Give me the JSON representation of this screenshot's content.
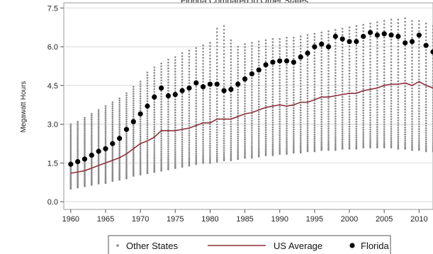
{
  "chart_data": {
    "type": "scatter",
    "title": "Florida Compared to Other States",
    "xlabel": "",
    "ylabel": "Megawatt Hours",
    "xlim": [
      1959,
      2012
    ],
    "ylim": [
      -0.3,
      7.7
    ],
    "x_ticks": [
      1960,
      1965,
      1970,
      1975,
      1980,
      1985,
      1990,
      1995,
      2000,
      2005,
      2010
    ],
    "y_ticks": [
      0.0,
      1.5,
      3.0,
      4.5,
      6.0,
      7.5
    ],
    "y_tick_labels": [
      "0.0",
      "1.5",
      "3.0",
      "4.5",
      "6.0",
      "7.5"
    ],
    "grid": "horizontal",
    "legend_position": "bottom",
    "colors": {
      "other_states": "#8a8a8a",
      "us_average": "#8e2f3a",
      "florida": "#000000",
      "plot_background": "#ffffff",
      "gridline": "#d9d9d9"
    },
    "series": [
      {
        "name": "Other States",
        "style": "small gray dots",
        "x": [
          1960,
          1961,
          1962,
          1963,
          1964,
          1965,
          1966,
          1967,
          1968,
          1969,
          1970,
          1971,
          1972,
          1973,
          1974,
          1975,
          1976,
          1977,
          1978,
          1979,
          1980,
          1981,
          1982,
          1983,
          1984,
          1985,
          1986,
          1987,
          1988,
          1989,
          1990,
          1991,
          1992,
          1993,
          1994,
          1995,
          1996,
          1997,
          1998,
          1999,
          2000,
          2001,
          2002,
          2003,
          2004,
          2005,
          2006,
          2007,
          2008,
          2009,
          2010,
          2011,
          2012
        ],
        "min": [
          0.5,
          0.55,
          0.6,
          0.65,
          0.7,
          0.72,
          0.8,
          0.85,
          0.9,
          1.0,
          1.05,
          1.1,
          1.15,
          1.2,
          1.25,
          1.3,
          1.35,
          1.4,
          1.45,
          1.5,
          1.5,
          1.55,
          1.6,
          1.6,
          1.65,
          1.7,
          1.7,
          1.75,
          1.8,
          1.8,
          1.85,
          1.85,
          1.9,
          1.9,
          1.95,
          1.95,
          2.0,
          2.0,
          2.0,
          2.05,
          2.05,
          2.05,
          2.1,
          2.1,
          2.1,
          2.1,
          2.1,
          2.05,
          2.05,
          2.0,
          2.0,
          1.95,
          1.95
        ],
        "max": [
          3.0,
          3.1,
          3.25,
          3.4,
          3.55,
          3.7,
          3.85,
          4.0,
          4.2,
          4.45,
          4.65,
          5.0,
          5.2,
          5.35,
          5.5,
          5.6,
          5.75,
          5.85,
          5.95,
          6.05,
          6.15,
          6.7,
          6.8,
          6.25,
          6.0,
          6.1,
          6.15,
          6.2,
          6.25,
          6.3,
          6.3,
          6.35,
          6.35,
          6.4,
          6.45,
          6.5,
          6.55,
          6.6,
          6.65,
          6.7,
          6.75,
          6.8,
          6.85,
          6.9,
          6.95,
          7.0,
          7.05,
          7.05,
          7.1,
          7.0,
          7.0,
          6.9,
          6.8
        ]
      },
      {
        "name": "US Average",
        "style": "line",
        "x": [
          1960,
          1961,
          1962,
          1963,
          1964,
          1965,
          1966,
          1967,
          1968,
          1969,
          1970,
          1971,
          1972,
          1973,
          1974,
          1975,
          1976,
          1977,
          1978,
          1979,
          1980,
          1981,
          1982,
          1983,
          1984,
          1985,
          1986,
          1987,
          1988,
          1989,
          1990,
          1991,
          1992,
          1993,
          1994,
          1995,
          1996,
          1997,
          1998,
          1999,
          2000,
          2001,
          2002,
          2003,
          2004,
          2005,
          2006,
          2007,
          2008,
          2009,
          2010,
          2011,
          2012
        ],
        "values": [
          1.1,
          1.15,
          1.2,
          1.3,
          1.4,
          1.5,
          1.6,
          1.7,
          1.85,
          2.05,
          2.25,
          2.35,
          2.5,
          2.75,
          2.75,
          2.75,
          2.8,
          2.85,
          2.95,
          3.05,
          3.05,
          3.2,
          3.2,
          3.2,
          3.3,
          3.4,
          3.45,
          3.55,
          3.65,
          3.7,
          3.75,
          3.7,
          3.75,
          3.85,
          3.85,
          3.95,
          4.05,
          4.05,
          4.1,
          4.15,
          4.2,
          4.2,
          4.3,
          4.35,
          4.4,
          4.5,
          4.55,
          4.55,
          4.6,
          4.5,
          4.65,
          4.5,
          4.4
        ]
      },
      {
        "name": "Florida",
        "style": "large black dots",
        "x": [
          1960,
          1961,
          1962,
          1963,
          1964,
          1965,
          1966,
          1967,
          1968,
          1969,
          1970,
          1971,
          1972,
          1973,
          1974,
          1975,
          1976,
          1977,
          1978,
          1979,
          1980,
          1981,
          1982,
          1983,
          1984,
          1985,
          1986,
          1987,
          1988,
          1989,
          1990,
          1991,
          1992,
          1993,
          1994,
          1995,
          1996,
          1997,
          1998,
          1999,
          2000,
          2001,
          2002,
          2003,
          2004,
          2005,
          2006,
          2007,
          2008,
          2009,
          2010,
          2011,
          2012
        ],
        "values": [
          1.45,
          1.55,
          1.65,
          1.8,
          1.95,
          2.05,
          2.25,
          2.45,
          2.8,
          3.1,
          3.4,
          3.7,
          4.05,
          4.4,
          4.1,
          4.15,
          4.3,
          4.4,
          4.6,
          4.45,
          4.55,
          4.55,
          4.3,
          4.35,
          4.55,
          4.75,
          4.95,
          5.1,
          5.3,
          5.4,
          5.45,
          5.45,
          5.4,
          5.6,
          5.75,
          6.0,
          6.1,
          6.0,
          6.4,
          6.3,
          6.2,
          6.2,
          6.4,
          6.55,
          6.45,
          6.5,
          6.45,
          6.4,
          6.15,
          6.2,
          6.45,
          6.05,
          5.8
        ]
      }
    ]
  },
  "legend": {
    "items": [
      "Other States",
      "US Average",
      "Florida"
    ]
  }
}
